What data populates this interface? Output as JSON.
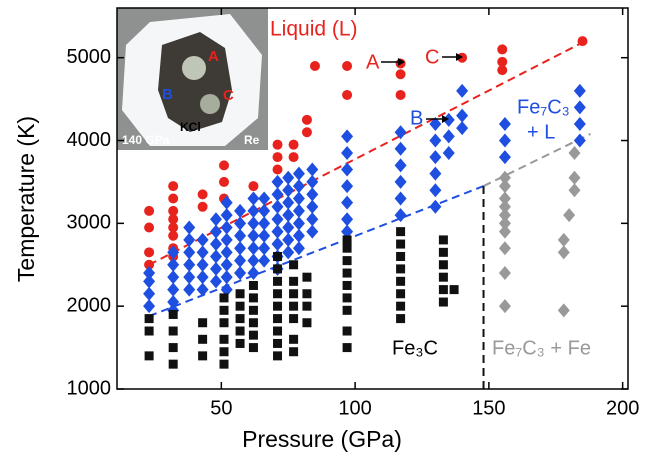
{
  "chart_data": {
    "type": "scatter",
    "xlabel": "Pressure (GPa)",
    "ylabel": "Temperature (K)",
    "xlim": [
      11,
      202
    ],
    "ylim": [
      1000,
      5600
    ],
    "xticks": [
      50,
      100,
      150,
      200
    ],
    "yticks": [
      1000,
      2000,
      3000,
      4000,
      5000
    ],
    "series": [
      {
        "marker": "circle",
        "color": "#e8231e",
        "x": [
          23,
          23,
          23,
          23,
          32,
          32,
          32,
          32,
          32,
          32,
          32,
          32,
          43,
          43,
          51,
          51,
          51,
          62,
          71,
          71,
          71,
          77,
          77,
          82,
          82,
          85,
          97,
          97,
          117,
          117,
          117,
          140,
          155,
          155,
          155,
          185
        ],
        "values": [
          3150,
          2950,
          2650,
          2500,
          3450,
          3300,
          3150,
          3050,
          2950,
          2850,
          2700,
          2600,
          3350,
          3200,
          3700,
          3500,
          3300,
          3450,
          3950,
          3800,
          3650,
          3950,
          3800,
          4250,
          4100,
          4900,
          4900,
          4550,
          4930,
          4800,
          4550,
          5000,
          5100,
          4950,
          4850,
          5200
        ]
      },
      {
        "marker": "diamond",
        "color": "#1f4fe0",
        "x": [
          23,
          23,
          23,
          23,
          32,
          32,
          32,
          32,
          32,
          32,
          38,
          38,
          38,
          38,
          38,
          38,
          43,
          43,
          43,
          43,
          43,
          48,
          48,
          48,
          48,
          48,
          48,
          52,
          52,
          52,
          52,
          52,
          52,
          52,
          52,
          57,
          57,
          57,
          57,
          57,
          57,
          62,
          62,
          62,
          62,
          62,
          62,
          62,
          66,
          66,
          66,
          66,
          66,
          66,
          71,
          71,
          71,
          71,
          71,
          71,
          71,
          71,
          75,
          75,
          75,
          75,
          75,
          75,
          75,
          79,
          79,
          79,
          79,
          79,
          79,
          79,
          84,
          84,
          84,
          84,
          84,
          84,
          97,
          97,
          97,
          97,
          97,
          97,
          97,
          117,
          117,
          117,
          117,
          117,
          117,
          130,
          130,
          130,
          130,
          130,
          130,
          135,
          135,
          135,
          140,
          140,
          140,
          156,
          156,
          156,
          184,
          184,
          184,
          184
        ],
        "values": [
          2400,
          2300,
          2150,
          2000,
          2650,
          2500,
          2350,
          2200,
          2050,
          1950,
          2950,
          2800,
          2650,
          2500,
          2350,
          2200,
          2800,
          2650,
          2500,
          2350,
          2200,
          3050,
          2900,
          2750,
          2600,
          2450,
          2300,
          3250,
          3100,
          2950,
          2800,
          2650,
          2500,
          2350,
          2200,
          3150,
          3000,
          2850,
          2700,
          2550,
          2400,
          3300,
          3150,
          3000,
          2850,
          2700,
          2550,
          2400,
          3300,
          3150,
          3000,
          2850,
          2700,
          2550,
          3500,
          3350,
          3200,
          3050,
          2900,
          2750,
          2600,
          2450,
          3550,
          3400,
          3250,
          3100,
          2950,
          2800,
          2650,
          3600,
          3450,
          3300,
          3150,
          3000,
          2850,
          2700,
          3650,
          3500,
          3350,
          3200,
          3050,
          2900,
          4050,
          3850,
          3650,
          3450,
          3250,
          3050,
          2900,
          4100,
          3900,
          3700,
          3500,
          3300,
          3100,
          4200,
          4000,
          3800,
          3600,
          3400,
          3200,
          4250,
          4050,
          3850,
          4600,
          4300,
          4150,
          4200,
          4000,
          3800,
          4600,
          4400,
          4200,
          4000
        ]
      },
      {
        "marker": "square",
        "color": "#111111",
        "x": [
          23,
          23,
          23,
          32,
          32,
          32,
          32,
          43,
          43,
          43,
          51,
          51,
          51,
          51,
          51,
          51,
          57,
          57,
          57,
          57,
          57,
          62,
          62,
          62,
          62,
          62,
          62,
          71,
          71,
          71,
          71,
          71,
          71,
          71,
          71,
          71,
          77,
          77,
          77,
          77,
          77,
          77,
          77,
          82,
          82,
          82,
          82,
          97,
          97,
          97,
          97,
          97,
          97,
          97,
          97,
          97,
          117,
          117,
          117,
          117,
          117,
          117,
          117,
          117,
          133,
          133,
          133,
          133,
          133,
          133,
          137
        ],
        "values": [
          1850,
          1700,
          1400,
          1900,
          1700,
          1500,
          1300,
          1800,
          1600,
          1400,
          2100,
          1950,
          1800,
          1600,
          1450,
          1300,
          2150,
          2000,
          1850,
          1700,
          1550,
          2250,
          2100,
          1950,
          1800,
          1650,
          1500,
          2600,
          2450,
          2300,
          2150,
          2000,
          1850,
          1700,
          1550,
          1400,
          2500,
          2300,
          2150,
          2000,
          1850,
          1600,
          1450,
          2350,
          2150,
          2000,
          1800,
          2800,
          2700,
          2550,
          2400,
          2250,
          2100,
          1950,
          1700,
          1500,
          2900,
          2750,
          2600,
          2450,
          2300,
          2150,
          2000,
          1850,
          2800,
          2650,
          2500,
          2350,
          2200,
          2050,
          2200
        ]
      },
      {
        "marker": "diamond",
        "color": "#999999",
        "x": [
          156,
          156,
          156,
          156,
          156,
          156,
          156,
          156,
          156,
          156,
          178,
          178,
          178,
          180,
          182,
          182,
          182
        ],
        "values": [
          3550,
          3450,
          3300,
          3200,
          3100,
          3000,
          2900,
          2700,
          2400,
          2000,
          2800,
          2650,
          1950,
          3100,
          3850,
          3550,
          3400
        ]
      }
    ],
    "lines": [
      {
        "color": "#e8231e",
        "x": [
          23,
          186
        ],
        "values": [
          2500,
          5200
        ]
      },
      {
        "color": "#1f4fe0",
        "x": [
          23,
          148
        ],
        "values": [
          1880,
          3450
        ]
      },
      {
        "color": "#999999",
        "x": [
          148,
          188
        ],
        "values": [
          3450,
          4080
        ]
      },
      {
        "color": "#111111",
        "x": [
          148,
          148
        ],
        "values": [
          1000,
          3450
        ]
      }
    ],
    "annotations": {
      "liquid": "Liquid (L)",
      "a": "A",
      "c": "C",
      "b": "B",
      "fe7c3_l_1": "Fe₇C₃",
      "fe7c3_l_2": "+ L",
      "fe3c": "Fe₃C",
      "fe7c3_fe": "Fe₇C₃ + Fe"
    },
    "inset": {
      "a": "A",
      "b": "B",
      "c": "C",
      "kcl": "KCl",
      "pressure": "140 GPa",
      "re": "Re"
    }
  }
}
